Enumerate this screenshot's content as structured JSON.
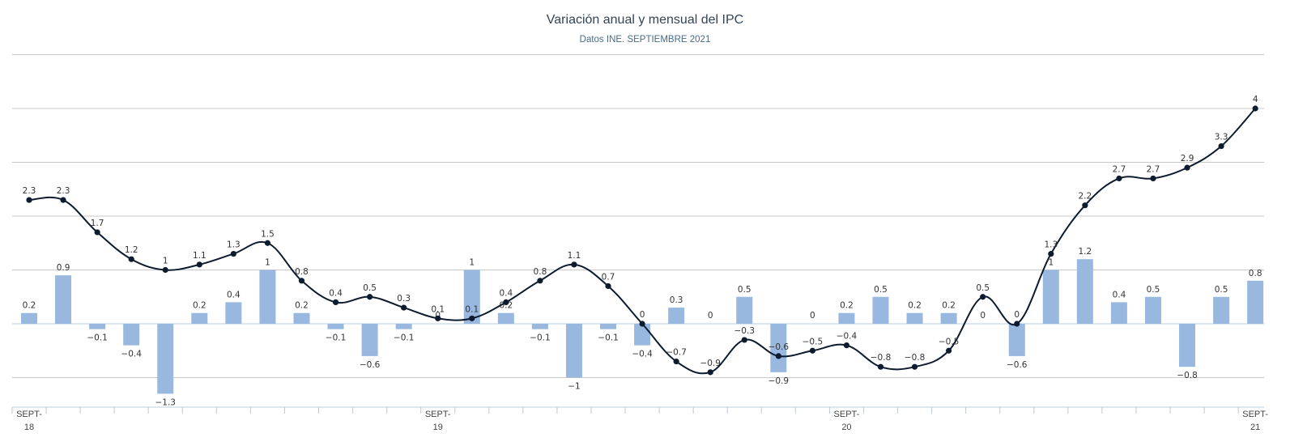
{
  "chart_data": {
    "type": "bar+line",
    "title": "Variación anual y mensual del IPC",
    "subtitle": "Datos INE. SEPTIEMBRE 2021",
    "x_tick_labels": [
      {
        "index": 0,
        "line1": "SEPT-",
        "line2": "18"
      },
      {
        "index": 12,
        "line1": "SEPT-",
        "line2": "19"
      },
      {
        "index": 24,
        "line1": "SEPT-",
        "line2": "20"
      },
      {
        "index": 36,
        "line1": "SEPT-",
        "line2": "21"
      }
    ],
    "ylim": [
      -1.5,
      5
    ],
    "gridlines": [
      -1,
      0,
      1,
      2,
      3,
      4,
      5
    ],
    "series": [
      {
        "kind": "bar",
        "color": "#98b8e0",
        "values": [
          0.2,
          0.9,
          -0.1,
          -0.4,
          -1.3,
          0.2,
          0.4,
          1,
          0.2,
          -0.1,
          -0.6,
          -0.1,
          0,
          1,
          0.2,
          -0.1,
          -1,
          -0.1,
          -0.4,
          0.3,
          0,
          0.5,
          -0.9,
          0,
          0.2,
          0.5,
          0.2,
          0.2,
          0,
          -0.6,
          1,
          1.2,
          0.4,
          0.5,
          -0.8,
          0.5,
          0.8
        ],
        "labels": [
          "0.2",
          "0.9",
          "−0.1",
          "−0.4",
          "−1.3",
          "0.2",
          "0.4",
          "1",
          "0.2",
          "−0.1",
          "−0.6",
          "−0.1",
          "0",
          "1",
          "0.2",
          "−0.1",
          "−1",
          "−0.1",
          "−0.4",
          "0.3",
          "0",
          "0.5",
          "−0.9",
          "0",
          "0.2",
          "0.5",
          "0.2",
          "0.2",
          "0",
          "−0.6",
          "1",
          "1.2",
          "0.4",
          "0.5",
          "−0.8",
          "0.5",
          "0.8"
        ]
      },
      {
        "kind": "line",
        "color": "#0d1b2e",
        "values": [
          2.3,
          2.3,
          1.7,
          1.2,
          1,
          1.1,
          1.3,
          1.5,
          0.8,
          0.4,
          0.5,
          0.3,
          0.1,
          0.1,
          0.4,
          0.8,
          1.1,
          0.7,
          0,
          -0.7,
          -0.9,
          -0.3,
          -0.6,
          -0.5,
          -0.4,
          -0.8,
          -0.8,
          -0.5,
          0.5,
          0,
          1.3,
          2.2,
          2.7,
          2.7,
          2.9,
          3.3,
          4
        ],
        "labels": [
          "2.3",
          "2.3",
          "1.7",
          "1.2",
          "1",
          "1.1",
          "1.3",
          "1.5",
          "0.8",
          "0.4",
          "0.5",
          "0.3",
          "0.1",
          "0.1",
          "0.4",
          "0.8",
          "1.1",
          "0.7",
          "0",
          "−0.7",
          "−0.9",
          "−0.3",
          "−0.6",
          "−0.5",
          "−0.4",
          "−0.8",
          "−0.8",
          "−0.5",
          "0.5",
          "0",
          "1.3",
          "2.2",
          "2.7",
          "2.7",
          "2.9",
          "3.3",
          "4"
        ]
      }
    ]
  }
}
